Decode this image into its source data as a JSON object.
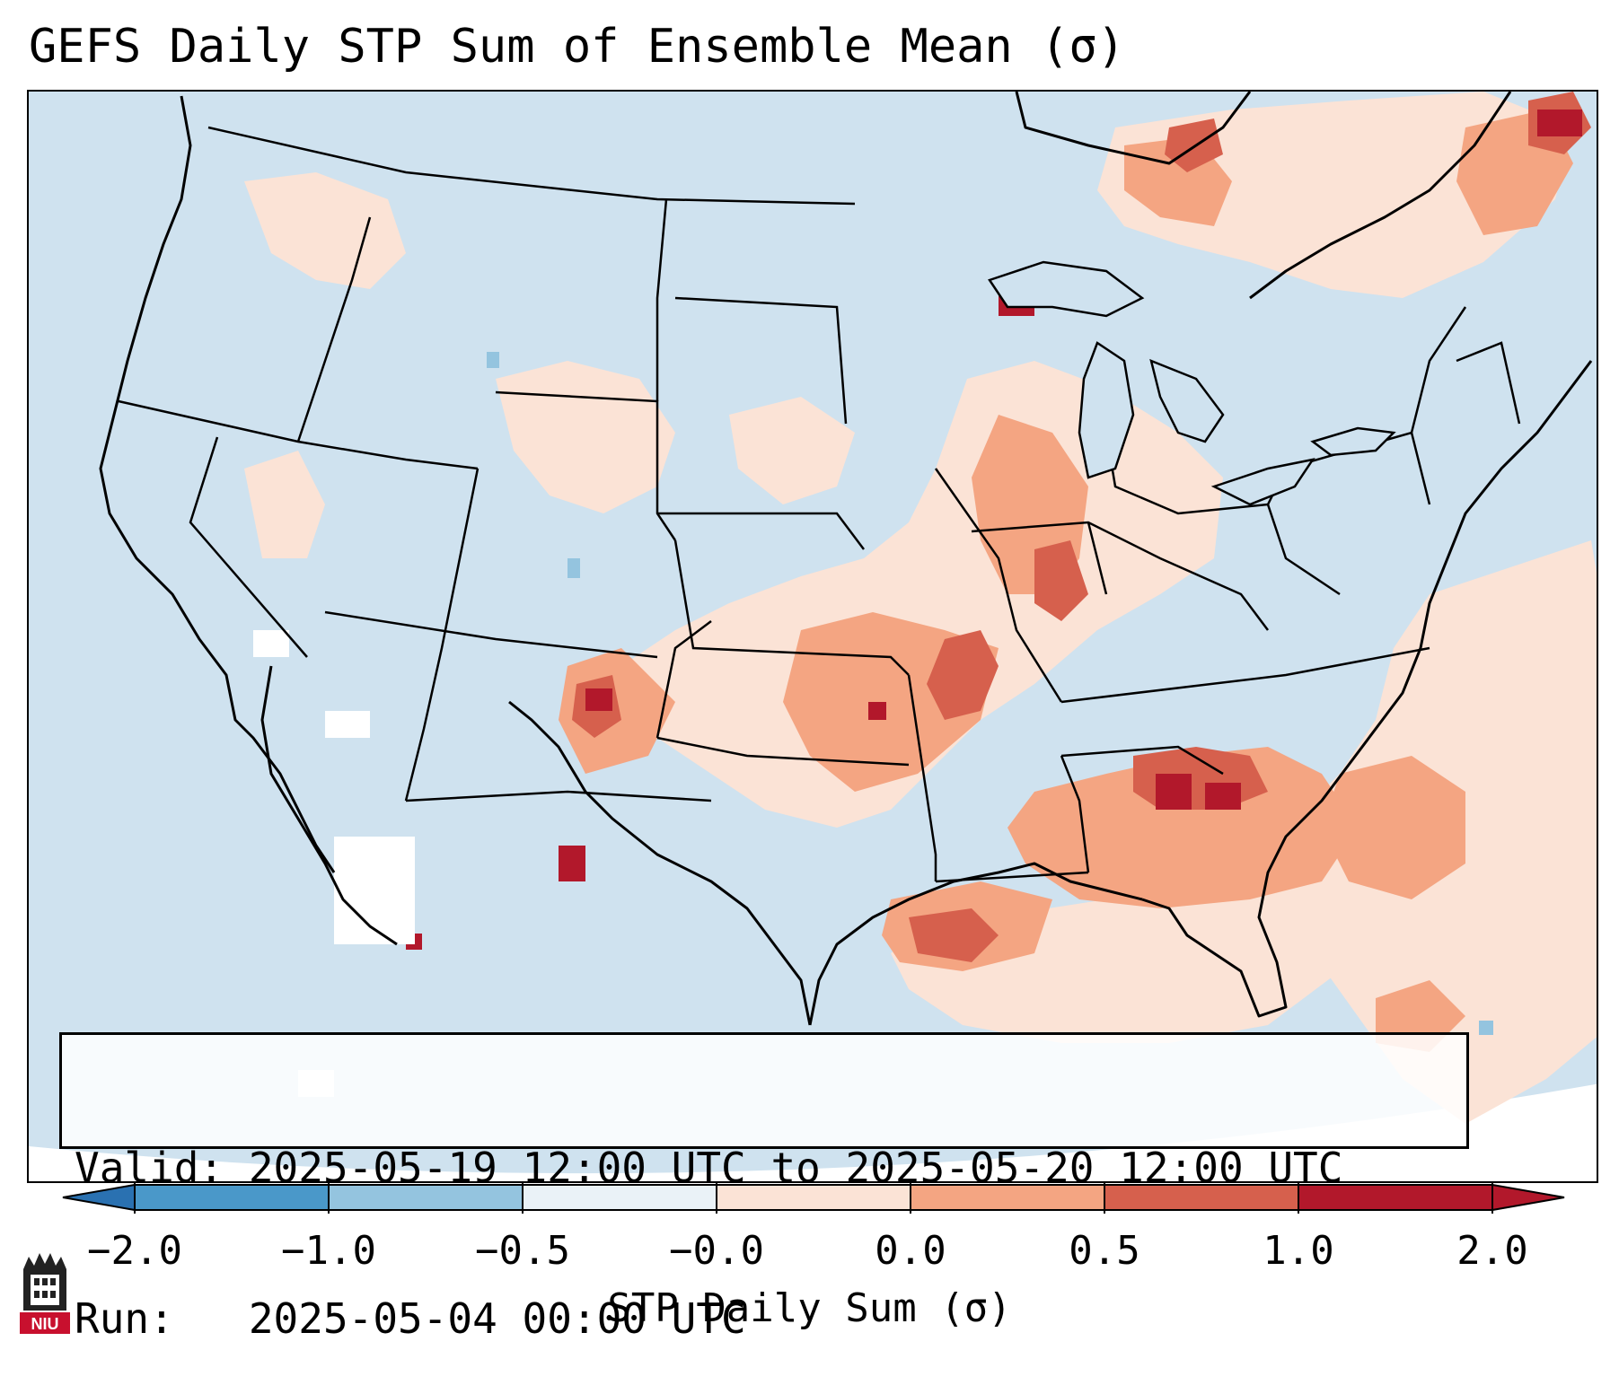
{
  "title": "GEFS Daily STP Sum of Ensemble Mean (σ)",
  "info": {
    "valid": "Valid: 2025-05-19 12:00 UTC to 2025-05-20 12:00 UTC",
    "run": "Run:   2025-05-04 00:00 UTC"
  },
  "colorbar": {
    "label": "STP Daily Sum (σ)",
    "ticks": [
      "−2.0",
      "−1.0",
      "−0.5",
      "−0.0",
      "0.0",
      "0.5",
      "1.0",
      "2.0"
    ],
    "colors": [
      "#2a71b1",
      "#4a98c9",
      "#94c4df",
      "#eaf2f7",
      "#fbe3d6",
      "#f4a582",
      "#d6604d",
      "#b2182b"
    ]
  },
  "map": {
    "background_color": "#cfe2ef",
    "border_color": "#000000",
    "logo_text": "NIU"
  }
}
